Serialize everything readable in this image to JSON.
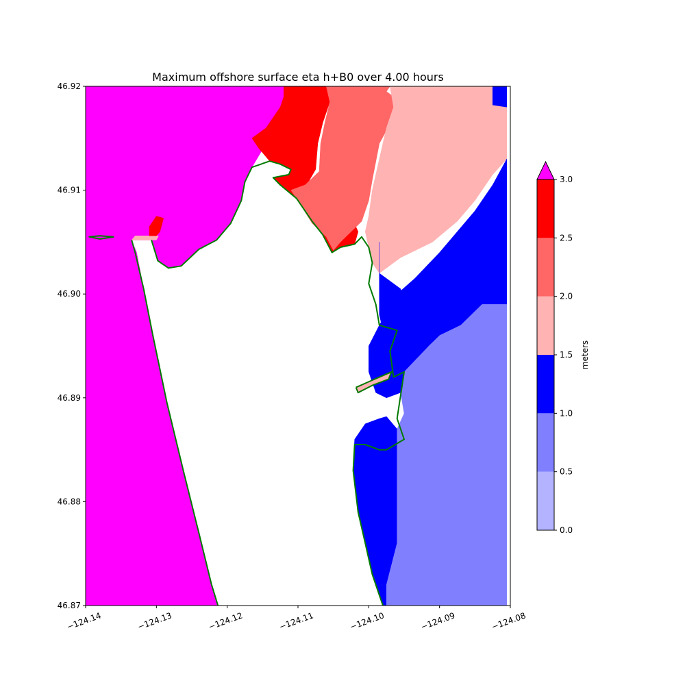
{
  "chart_data": {
    "type": "heatmap",
    "title": "Maximum offshore surface eta h+B0 over 4.00 hours",
    "xlabel": "",
    "ylabel": "",
    "xlim": [
      -124.14,
      -124.08
    ],
    "ylim": [
      46.87,
      46.92
    ],
    "x_ticks": [
      -124.14,
      -124.13,
      -124.12,
      -124.11,
      -124.1,
      -124.09,
      -124.08
    ],
    "x_tick_labels": [
      "−124.14",
      "−124.13",
      "−124.12",
      "−124.11",
      "−124.10",
      "−124.09",
      "−124.08"
    ],
    "y_ticks": [
      46.87,
      46.88,
      46.89,
      46.9,
      46.91,
      46.92
    ],
    "y_tick_labels": [
      "46.87",
      "46.88",
      "46.89",
      "46.90",
      "46.91",
      "46.92"
    ],
    "colorbar": {
      "label": "meters",
      "levels": [
        0.0,
        0.5,
        1.0,
        1.5,
        2.0,
        2.5,
        3.0
      ],
      "tick_labels": [
        "0.0",
        "0.5",
        "1.0",
        "1.5",
        "2.0",
        "2.5",
        "3.0"
      ],
      "colors": [
        "#b3b3ff",
        "#8080ff",
        "#0000ff",
        "#ffb3b3",
        "#ff6666",
        "#ff0000"
      ],
      "over_color": "#ff00ff",
      "extend": "max"
    },
    "land_color": "#ffffff",
    "shoreline_color": "#007a00",
    "regions": [
      {
        "name": "over",
        "level": "over",
        "color": "#ff00ff",
        "poly": [
          [
            -124.14,
            46.92
          ],
          [
            -124.112,
            46.92
          ],
          [
            -124.112,
            46.9165
          ],
          [
            -124.1145,
            46.9145
          ],
          [
            -124.1165,
            46.9122
          ],
          [
            -124.1175,
            46.9108
          ],
          [
            -124.118,
            46.909
          ],
          [
            -124.1195,
            46.9068
          ],
          [
            -124.1215,
            46.9052
          ],
          [
            -124.124,
            46.9043
          ],
          [
            -124.1265,
            46.9027
          ],
          [
            -124.1283,
            46.9025
          ],
          [
            -124.1298,
            46.9032
          ],
          [
            -124.1307,
            46.9052
          ],
          [
            -124.1335,
            46.9052
          ],
          [
            -124.1328,
            46.904
          ],
          [
            -124.1318,
            46.9005
          ],
          [
            -124.1305,
            46.896
          ],
          [
            -124.1285,
            46.8895
          ],
          [
            -124.1262,
            46.883
          ],
          [
            -124.124,
            46.877
          ],
          [
            -124.1222,
            46.872
          ],
          [
            -124.1213,
            46.87
          ],
          [
            -124.14,
            46.87
          ]
        ]
      },
      {
        "name": "red-north",
        "level": 5,
        "color": "#ff0000",
        "poly": [
          [
            -124.112,
            46.92
          ],
          [
            -124.106,
            46.92
          ],
          [
            -124.1055,
            46.9185
          ],
          [
            -124.1065,
            46.9165
          ],
          [
            -124.1072,
            46.9145
          ],
          [
            -124.1075,
            46.912
          ],
          [
            -124.1092,
            46.91
          ],
          [
            -124.1075,
            46.908
          ],
          [
            -124.1055,
            46.9075
          ],
          [
            -124.1045,
            46.9085
          ],
          [
            -124.1025,
            46.9075
          ],
          [
            -124.1015,
            46.906
          ],
          [
            -124.102,
            46.9048
          ],
          [
            -124.104,
            46.9045
          ],
          [
            -124.1052,
            46.904
          ],
          [
            -124.1065,
            46.9057
          ],
          [
            -124.108,
            46.907
          ],
          [
            -124.1102,
            46.9092
          ],
          [
            -124.1125,
            46.9105
          ],
          [
            -124.1135,
            46.9112
          ],
          [
            -124.1113,
            46.9115
          ],
          [
            -124.111,
            46.912
          ],
          [
            -124.1125,
            46.9125
          ],
          [
            -124.114,
            46.9128
          ],
          [
            -124.1155,
            46.914
          ],
          [
            -124.1165,
            46.915
          ],
          [
            -124.1145,
            46.916
          ],
          [
            -124.1125,
            46.918
          ],
          [
            -124.112,
            46.919
          ]
        ]
      },
      {
        "name": "dark-salmon",
        "level": 4,
        "color": "#ff6666",
        "poly": [
          [
            -124.106,
            46.92
          ],
          [
            -124.097,
            46.92
          ],
          [
            -124.0975,
            46.9195
          ],
          [
            -124.0965,
            46.919
          ],
          [
            -124.0965,
            46.917
          ],
          [
            -124.0985,
            46.9145
          ],
          [
            -124.0995,
            46.911
          ],
          [
            -124.1,
            46.909
          ],
          [
            -124.101,
            46.907
          ],
          [
            -124.1025,
            46.906
          ],
          [
            -124.104,
            46.905
          ],
          [
            -124.105,
            46.9042
          ],
          [
            -124.106,
            46.9055
          ],
          [
            -124.108,
            46.9068
          ],
          [
            -124.11,
            46.909
          ],
          [
            -124.111,
            46.91
          ],
          [
            -124.109,
            46.9105
          ],
          [
            -124.107,
            46.9118
          ],
          [
            -124.1068,
            46.9145
          ],
          [
            -124.1062,
            46.9165
          ],
          [
            -124.1055,
            46.9185
          ]
        ]
      },
      {
        "name": "light-pink",
        "level": 3,
        "color": "#ffb3b3",
        "poly": [
          [
            -124.097,
            46.92
          ],
          [
            -124.0805,
            46.92
          ],
          [
            -124.0805,
            46.913
          ],
          [
            -124.0825,
            46.9115
          ],
          [
            -124.085,
            46.909
          ],
          [
            -124.0875,
            46.907
          ],
          [
            -124.091,
            46.905
          ],
          [
            -124.0955,
            46.9035
          ],
          [
            -124.0985,
            46.902
          ],
          [
            -124.0995,
            46.903
          ],
          [
            -124.1,
            46.9045
          ],
          [
            -124.1005,
            46.906
          ],
          [
            -124.1,
            46.9075
          ],
          [
            -124.0995,
            46.91
          ],
          [
            -124.0985,
            46.913
          ],
          [
            -124.0975,
            46.916
          ],
          [
            -124.0965,
            46.918
          ]
        ]
      },
      {
        "name": "blue-east",
        "level": 2,
        "color": "#0000ff",
        "poly": [
          [
            -124.0805,
            46.913
          ],
          [
            -124.0805,
            46.899
          ],
          [
            -124.084,
            46.899
          ],
          [
            -124.087,
            46.897
          ],
          [
            -124.09,
            46.896
          ],
          [
            -124.0915,
            46.895
          ],
          [
            -124.0935,
            46.8935
          ],
          [
            -124.095,
            46.892
          ],
          [
            -124.0955,
            46.8905
          ],
          [
            -124.0975,
            46.89
          ],
          [
            -124.099,
            46.8905
          ],
          [
            -124.1,
            46.8925
          ],
          [
            -124.1,
            46.895
          ],
          [
            -124.0985,
            46.897
          ],
          [
            -124.096,
            46.9
          ],
          [
            -124.0935,
            46.9015
          ],
          [
            -124.09,
            46.904
          ],
          [
            -124.0875,
            46.906
          ],
          [
            -124.085,
            46.908
          ],
          [
            -124.0825,
            46.9105
          ]
        ]
      },
      {
        "name": "blue-east-top",
        "level": 2,
        "color": "#0000ff",
        "poly": [
          [
            -124.0825,
            46.92
          ],
          [
            -124.0805,
            46.92
          ],
          [
            -124.0805,
            46.918
          ],
          [
            -124.0825,
            46.9182
          ]
        ]
      },
      {
        "name": "blue-inner-top",
        "level": 2,
        "color": "#0000ff",
        "poly": [
          [
            -124.0985,
            46.905
          ],
          [
            -124.0985,
            46.902
          ],
          [
            -124.0955,
            46.9005
          ],
          [
            -124.0945,
            46.8975
          ],
          [
            -124.0935,
            46.896
          ],
          [
            -124.095,
            46.8945
          ],
          [
            -124.0955,
            46.893
          ],
          [
            -124.0965,
            46.892
          ],
          [
            -124.0975,
            46.8925
          ],
          [
            -124.0975,
            46.895
          ],
          [
            -124.0985,
            46.898
          ],
          [
            -124.0985,
            46.9
          ]
        ]
      },
      {
        "name": "blue-south",
        "level": 2,
        "color": "#0000ff",
        "poly": [
          [
            -124.096,
            46.887
          ],
          [
            -124.096,
            46.876
          ],
          [
            -124.0975,
            46.872
          ],
          [
            -124.0975,
            46.87
          ],
          [
            -124.098,
            46.87
          ],
          [
            -124.0985,
            46.871
          ],
          [
            -124.0995,
            46.873
          ],
          [
            -124.1005,
            46.876
          ],
          [
            -124.1015,
            46.879
          ],
          [
            -124.1022,
            46.883
          ],
          [
            -124.102,
            46.886
          ],
          [
            -124.1005,
            46.8875
          ],
          [
            -124.0985,
            46.888
          ],
          [
            -124.0975,
            46.8882
          ]
        ]
      },
      {
        "name": "medium-blue",
        "level": 1,
        "color": "#8080ff",
        "poly": [
          [
            -124.0805,
            46.899
          ],
          [
            -124.0805,
            46.87
          ],
          [
            -124.0975,
            46.87
          ],
          [
            -124.0975,
            46.872
          ],
          [
            -124.096,
            46.876
          ],
          [
            -124.096,
            46.887
          ],
          [
            -124.095,
            46.8885
          ],
          [
            -124.0955,
            46.8905
          ],
          [
            -124.095,
            46.8925
          ],
          [
            -124.0915,
            46.895
          ],
          [
            -124.09,
            46.896
          ],
          [
            -124.087,
            46.897
          ],
          [
            -124.084,
            46.899
          ]
        ]
      },
      {
        "name": "pink-bar",
        "level": 3,
        "color": "#ffb3b3",
        "poly": [
          [
            -124.1018,
            46.891
          ],
          [
            -124.0995,
            46.8917
          ],
          [
            -124.0978,
            46.8922
          ],
          [
            -124.0968,
            46.8925
          ],
          [
            -124.0972,
            46.8918
          ],
          [
            -124.0995,
            46.8912
          ],
          [
            -124.1015,
            46.8905
          ]
        ]
      },
      {
        "name": "pink-spit",
        "level": 3,
        "color": "#ffb3b3",
        "poly": [
          [
            -124.1335,
            46.9052
          ],
          [
            -124.13,
            46.9052
          ],
          [
            -124.1297,
            46.9056
          ],
          [
            -124.133,
            46.9056
          ]
        ]
      },
      {
        "name": "red-spit",
        "level": 5,
        "color": "#ff0000",
        "poly": [
          [
            -124.131,
            46.9056
          ],
          [
            -124.131,
            46.9065
          ],
          [
            -124.13,
            46.9075
          ],
          [
            -124.129,
            46.9073
          ],
          [
            -124.1295,
            46.906
          ],
          [
            -124.13,
            46.9056
          ]
        ]
      }
    ],
    "shorelines": [
      [
        [
          -124.1307,
          46.9052
        ],
        [
          -124.1298,
          46.9032
        ],
        [
          -124.1283,
          46.9025
        ],
        [
          -124.1265,
          46.9027
        ],
        [
          -124.124,
          46.9043
        ],
        [
          -124.1215,
          46.9052
        ],
        [
          -124.1195,
          46.9068
        ],
        [
          -124.118,
          46.909
        ],
        [
          -124.1175,
          46.9108
        ],
        [
          -124.1165,
          46.9122
        ],
        [
          -124.114,
          46.9128
        ],
        [
          -124.1125,
          46.9125
        ],
        [
          -124.111,
          46.912
        ],
        [
          -124.1113,
          46.9115
        ],
        [
          -124.1135,
          46.9112
        ],
        [
          -124.1125,
          46.9105
        ],
        [
          -124.1102,
          46.9092
        ],
        [
          -124.108,
          46.907
        ],
        [
          -124.1065,
          46.9057
        ],
        [
          -124.1052,
          46.904
        ],
        [
          -124.104,
          46.9045
        ],
        [
          -124.102,
          46.9048
        ],
        [
          -124.101,
          46.9055
        ],
        [
          -124.1,
          46.9045
        ],
        [
          -124.0995,
          46.903
        ],
        [
          -124.1,
          46.901
        ],
        [
          -124.099,
          46.899
        ],
        [
          -124.0985,
          46.897
        ],
        [
          -124.096,
          46.8965
        ],
        [
          -124.097,
          46.8945
        ],
        [
          -124.0965,
          46.892
        ],
        [
          -124.095,
          46.8925
        ],
        [
          -124.096,
          46.888
        ],
        [
          -124.095,
          46.886
        ],
        [
          -124.0975,
          46.885
        ],
        [
          -124.0985,
          46.885
        ],
        [
          -124.1005,
          46.8855
        ],
        [
          -124.102,
          46.8855
        ],
        [
          -124.1022,
          46.883
        ],
        [
          -124.1015,
          46.879
        ],
        [
          -124.1005,
          46.876
        ],
        [
          -124.0995,
          46.873
        ],
        [
          -124.0985,
          46.871
        ],
        [
          -124.098,
          46.87
        ]
      ],
      [
        [
          -124.1335,
          46.9052
        ],
        [
          -124.133,
          46.904
        ],
        [
          -124.1318,
          46.9005
        ],
        [
          -124.1305,
          46.896
        ],
        [
          -124.1285,
          46.8895
        ],
        [
          -124.1262,
          46.883
        ],
        [
          -124.124,
          46.877
        ],
        [
          -124.1222,
          46.872
        ],
        [
          -124.1213,
          46.87
        ]
      ],
      [
        [
          -124.1018,
          46.891
        ],
        [
          -124.0995,
          46.8917
        ],
        [
          -124.0978,
          46.8922
        ],
        [
          -124.0968,
          46.8925
        ],
        [
          -124.0972,
          46.8918
        ],
        [
          -124.0995,
          46.8912
        ],
        [
          -124.1015,
          46.8905
        ],
        [
          -124.1018,
          46.891
        ]
      ],
      [
        [
          -124.136,
          46.9055
        ],
        [
          -124.138,
          46.9056
        ],
        [
          -124.1395,
          46.9055
        ],
        [
          -124.138,
          46.9053
        ],
        [
          -124.136,
          46.9055
        ]
      ]
    ]
  }
}
